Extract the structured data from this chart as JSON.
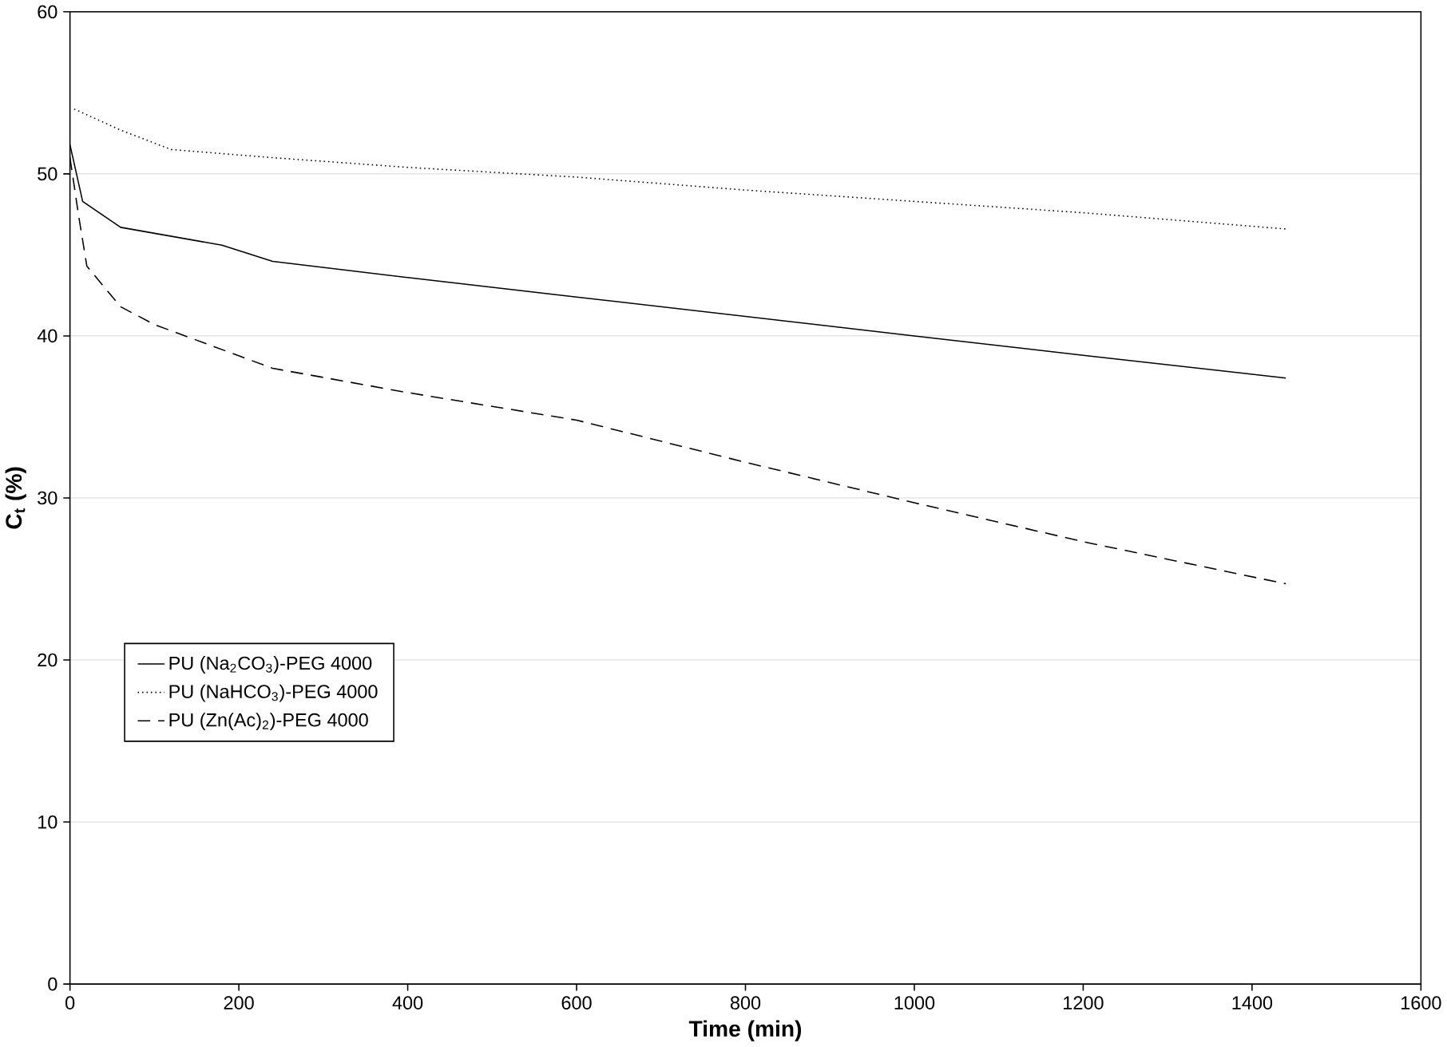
{
  "chart_data": {
    "type": "line",
    "xlabel": "Time (min)",
    "ylabel": "C$_{t}$ (%)",
    "xlim": [
      0,
      1600
    ],
    "ylim": [
      0,
      60
    ],
    "xticks": [
      0,
      200,
      400,
      600,
      800,
      1000,
      1200,
      1400,
      1600
    ],
    "yticks": [
      0,
      10,
      20,
      30,
      40,
      50,
      60
    ],
    "grid": "y",
    "legend": "left",
    "marker": "none",
    "series": [
      {
        "name": "PU (Na$_{2}$CO$_{3}$)-PEG 4000",
        "color": "#000000",
        "line_style": "solid",
        "x": [
          0,
          15,
          60,
          180,
          240,
          400,
          600,
          800,
          1000,
          1200,
          1440
        ],
        "values": [
          51.8,
          48.3,
          46.7,
          45.6,
          44.6,
          43.6,
          42.4,
          41.2,
          40.0,
          38.8,
          37.4
        ]
      },
      {
        "name": "PU (NaHCO$_{3}$)-PEG 4000",
        "color": "#000000",
        "line_style": "dotted",
        "x": [
          5,
          60,
          120,
          240,
          400,
          600,
          800,
          1000,
          1200,
          1440
        ],
        "values": [
          54.0,
          52.7,
          51.5,
          51.0,
          50.4,
          49.8,
          49.0,
          48.3,
          47.6,
          46.6
        ]
      },
      {
        "name": "PU (Zn(Ac)$_{2}$)-PEG 4000",
        "color": "#000000",
        "line_style": "dashed",
        "x": [
          0,
          10,
          20,
          60,
          100,
          240,
          400,
          600,
          800,
          1000,
          1200,
          1440
        ],
        "values": [
          51.0,
          47.5,
          44.3,
          41.8,
          40.7,
          38.0,
          36.5,
          34.8,
          32.2,
          29.7,
          27.3,
          24.7
        ]
      }
    ]
  }
}
